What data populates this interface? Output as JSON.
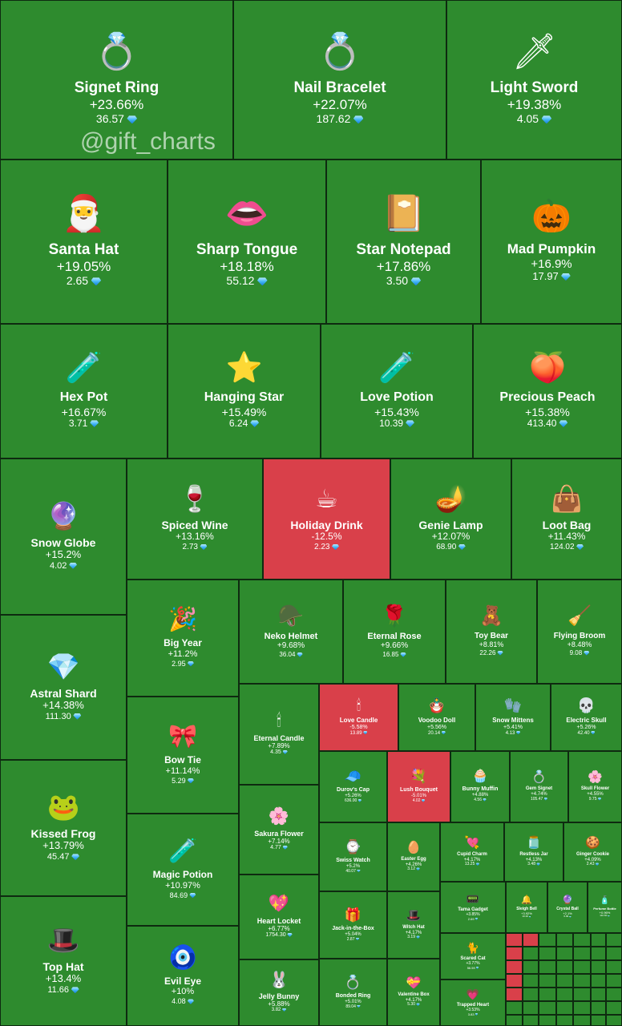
{
  "watermark": "@gift_charts",
  "colors": {
    "up": "#2e8b2e",
    "down": "#d9404a",
    "border": "#0e2a10"
  },
  "chart_data": {
    "type": "treemap",
    "title": "",
    "currency_icon": "diamond-icon",
    "items": [
      {
        "name": "Signet Ring",
        "change": "+23.66%",
        "price": "36.57",
        "icon": "💍",
        "dir": "up"
      },
      {
        "name": "Nail Bracelet",
        "change": "+22.07%",
        "price": "187.62",
        "icon": "💍",
        "dir": "up"
      },
      {
        "name": "Light Sword",
        "change": "+19.38%",
        "price": "4.05",
        "icon": "🗡",
        "dir": "up"
      },
      {
        "name": "Santa Hat",
        "change": "+19.05%",
        "price": "2.65",
        "icon": "🎅",
        "dir": "up"
      },
      {
        "name": "Sharp Tongue",
        "change": "+18.18%",
        "price": "55.12",
        "icon": "👄",
        "dir": "up"
      },
      {
        "name": "Star Notepad",
        "change": "+17.86%",
        "price": "3.50",
        "icon": "📔",
        "dir": "up"
      },
      {
        "name": "Mad Pumpkin",
        "change": "+16.9%",
        "price": "17.97",
        "icon": "🎃",
        "dir": "up"
      },
      {
        "name": "Hex Pot",
        "change": "+16.67%",
        "price": "3.71",
        "icon": "🧪",
        "dir": "up"
      },
      {
        "name": "Hanging Star",
        "change": "+15.49%",
        "price": "6.24",
        "icon": "⭐",
        "dir": "up"
      },
      {
        "name": "Love Potion",
        "change": "+15.43%",
        "price": "10.39",
        "icon": "🧪",
        "dir": "up"
      },
      {
        "name": "Precious Peach",
        "change": "+15.38%",
        "price": "413.40",
        "icon": "🍑",
        "dir": "up"
      },
      {
        "name": "Snow Globe",
        "change": "+15.2%",
        "price": "4.02",
        "icon": "🔮",
        "dir": "up"
      },
      {
        "name": "Spiced Wine",
        "change": "+13.16%",
        "price": "2.73",
        "icon": "🍷",
        "dir": "up"
      },
      {
        "name": "Holiday Drink",
        "change": "-12.5%",
        "price": "2.23",
        "icon": "☕",
        "dir": "down"
      },
      {
        "name": "Genie Lamp",
        "change": "+12.07%",
        "price": "68.90",
        "icon": "🪔",
        "dir": "up"
      },
      {
        "name": "Loot Bag",
        "change": "+11.43%",
        "price": "124.02",
        "icon": "👜",
        "dir": "up"
      },
      {
        "name": "Big Year",
        "change": "+11.2%",
        "price": "2.95",
        "icon": "🎉",
        "dir": "up"
      },
      {
        "name": "Neko Helmet",
        "change": "+9.68%",
        "price": "36.04",
        "icon": "🪖",
        "dir": "up"
      },
      {
        "name": "Eternal Rose",
        "change": "+9.66%",
        "price": "16.85",
        "icon": "🌹",
        "dir": "up"
      },
      {
        "name": "Toy Bear",
        "change": "+8.81%",
        "price": "22.26",
        "icon": "🧸",
        "dir": "up"
      },
      {
        "name": "Flying Broom",
        "change": "+8.48%",
        "price": "9.08",
        "icon": "🧹",
        "dir": "up"
      },
      {
        "name": "Astral Shard",
        "change": "+14.38%",
        "price": "111.30",
        "icon": "💎",
        "dir": "up"
      },
      {
        "name": "Bow Tie",
        "change": "+11.14%",
        "price": "5.29",
        "icon": "🎀",
        "dir": "up"
      },
      {
        "name": "Eternal Candle",
        "change": "+7.89%",
        "price": "4.35",
        "icon": "🕯",
        "dir": "up"
      },
      {
        "name": "Love Candle",
        "change": "-5.58%",
        "price": "13.89",
        "icon": "🕯",
        "dir": "down"
      },
      {
        "name": "Voodoo Doll",
        "change": "+5.56%",
        "price": "20.14",
        "icon": "🪆",
        "dir": "up"
      },
      {
        "name": "Snow Mittens",
        "change": "+5.41%",
        "price": "4.13",
        "icon": "🧤",
        "dir": "up"
      },
      {
        "name": "Electric Skull",
        "change": "+5.26%",
        "price": "42.40",
        "icon": "💀",
        "dir": "up"
      },
      {
        "name": "Durov's Cap",
        "change": "+5.26%",
        "price": "636.00",
        "icon": "🧢",
        "dir": "up"
      },
      {
        "name": "Lush Bouquet",
        "change": "-5.01%",
        "price": "4.02",
        "icon": "💐",
        "dir": "down"
      },
      {
        "name": "Bunny Muffin",
        "change": "+4.88%",
        "price": "4.56",
        "icon": "🧁",
        "dir": "up"
      },
      {
        "name": "Gem Signet",
        "change": "+4.74%",
        "price": "105.47",
        "icon": "💍",
        "dir": "up"
      },
      {
        "name": "Skull Flower",
        "change": "+4.55%",
        "price": "9.75",
        "icon": "🌸",
        "dir": "up"
      },
      {
        "name": "Kissed Frog",
        "change": "+13.79%",
        "price": "45.47",
        "icon": "🐸",
        "dir": "up"
      },
      {
        "name": "Magic Potion",
        "change": "+10.97%",
        "price": "84.69",
        "icon": "🧪",
        "dir": "up"
      },
      {
        "name": "Sakura Flower",
        "change": "+7.14%",
        "price": "4.77",
        "icon": "🌸",
        "dir": "up"
      },
      {
        "name": "Swiss Watch",
        "change": "+5.2%",
        "price": "40.07",
        "icon": "⌚",
        "dir": "up"
      },
      {
        "name": "Easter Egg",
        "change": "+4.26%",
        "price": "3.12",
        "icon": "🥚",
        "dir": "up"
      },
      {
        "name": "Cupid Charm",
        "change": "+4.17%",
        "price": "13.25",
        "icon": "💘",
        "dir": "up"
      },
      {
        "name": "Restless Jar",
        "change": "+4.13%",
        "price": "3.48",
        "icon": "🫙",
        "dir": "up"
      },
      {
        "name": "Ginger Cookie",
        "change": "+4.09%",
        "price": "2.43",
        "icon": "🍪",
        "dir": "up"
      },
      {
        "name": "Heart Locket",
        "change": "+6.77%",
        "price": "1754.30",
        "icon": "💖",
        "dir": "up"
      },
      {
        "name": "Jack-in-the-Box",
        "change": "+5.04%",
        "price": "2.87",
        "icon": "🎁",
        "dir": "up"
      },
      {
        "name": "Witch Hat",
        "change": "+4.17%",
        "price": "3.19",
        "icon": "🎩",
        "dir": "up"
      },
      {
        "name": "Tama Gadget",
        "change": "+3.85%",
        "price": "2.69",
        "icon": "📟",
        "dir": "up"
      },
      {
        "name": "Sleigh Bell",
        "change": "+3.92%",
        "price": "10.36",
        "icon": "🔔",
        "dir": "up"
      },
      {
        "name": "Crystal Ball",
        "change": "+2.1%",
        "price": "6.99",
        "icon": "🔮",
        "dir": "up"
      },
      {
        "name": "Perfume Bottle",
        "change": "+0.96%",
        "price": "110.60",
        "icon": "🧴",
        "dir": "up"
      },
      {
        "name": "Top Hat",
        "change": "+13.4%",
        "price": "11.66",
        "icon": "🎩",
        "dir": "up"
      },
      {
        "name": "Evil Eye",
        "change": "+10%",
        "price": "4.08",
        "icon": "🧿",
        "dir": "up"
      },
      {
        "name": "Jelly Bunny",
        "change": "+5.88%",
        "price": "3.82",
        "icon": "🐰",
        "dir": "up"
      },
      {
        "name": "Bonded Ring",
        "change": "+5.01%",
        "price": "89.04",
        "icon": "💍",
        "dir": "up"
      },
      {
        "name": "Valentine Box",
        "change": "+4.17%",
        "price": "5.30",
        "icon": "💝",
        "dir": "up"
      },
      {
        "name": "Scared Cat",
        "change": "+3.77%",
        "price": "56.59",
        "icon": "🐈",
        "dir": "up"
      },
      {
        "name": "Trapped Heart",
        "change": "+3.53%",
        "price": "3.83",
        "icon": "💗",
        "dir": "up"
      }
    ]
  }
}
